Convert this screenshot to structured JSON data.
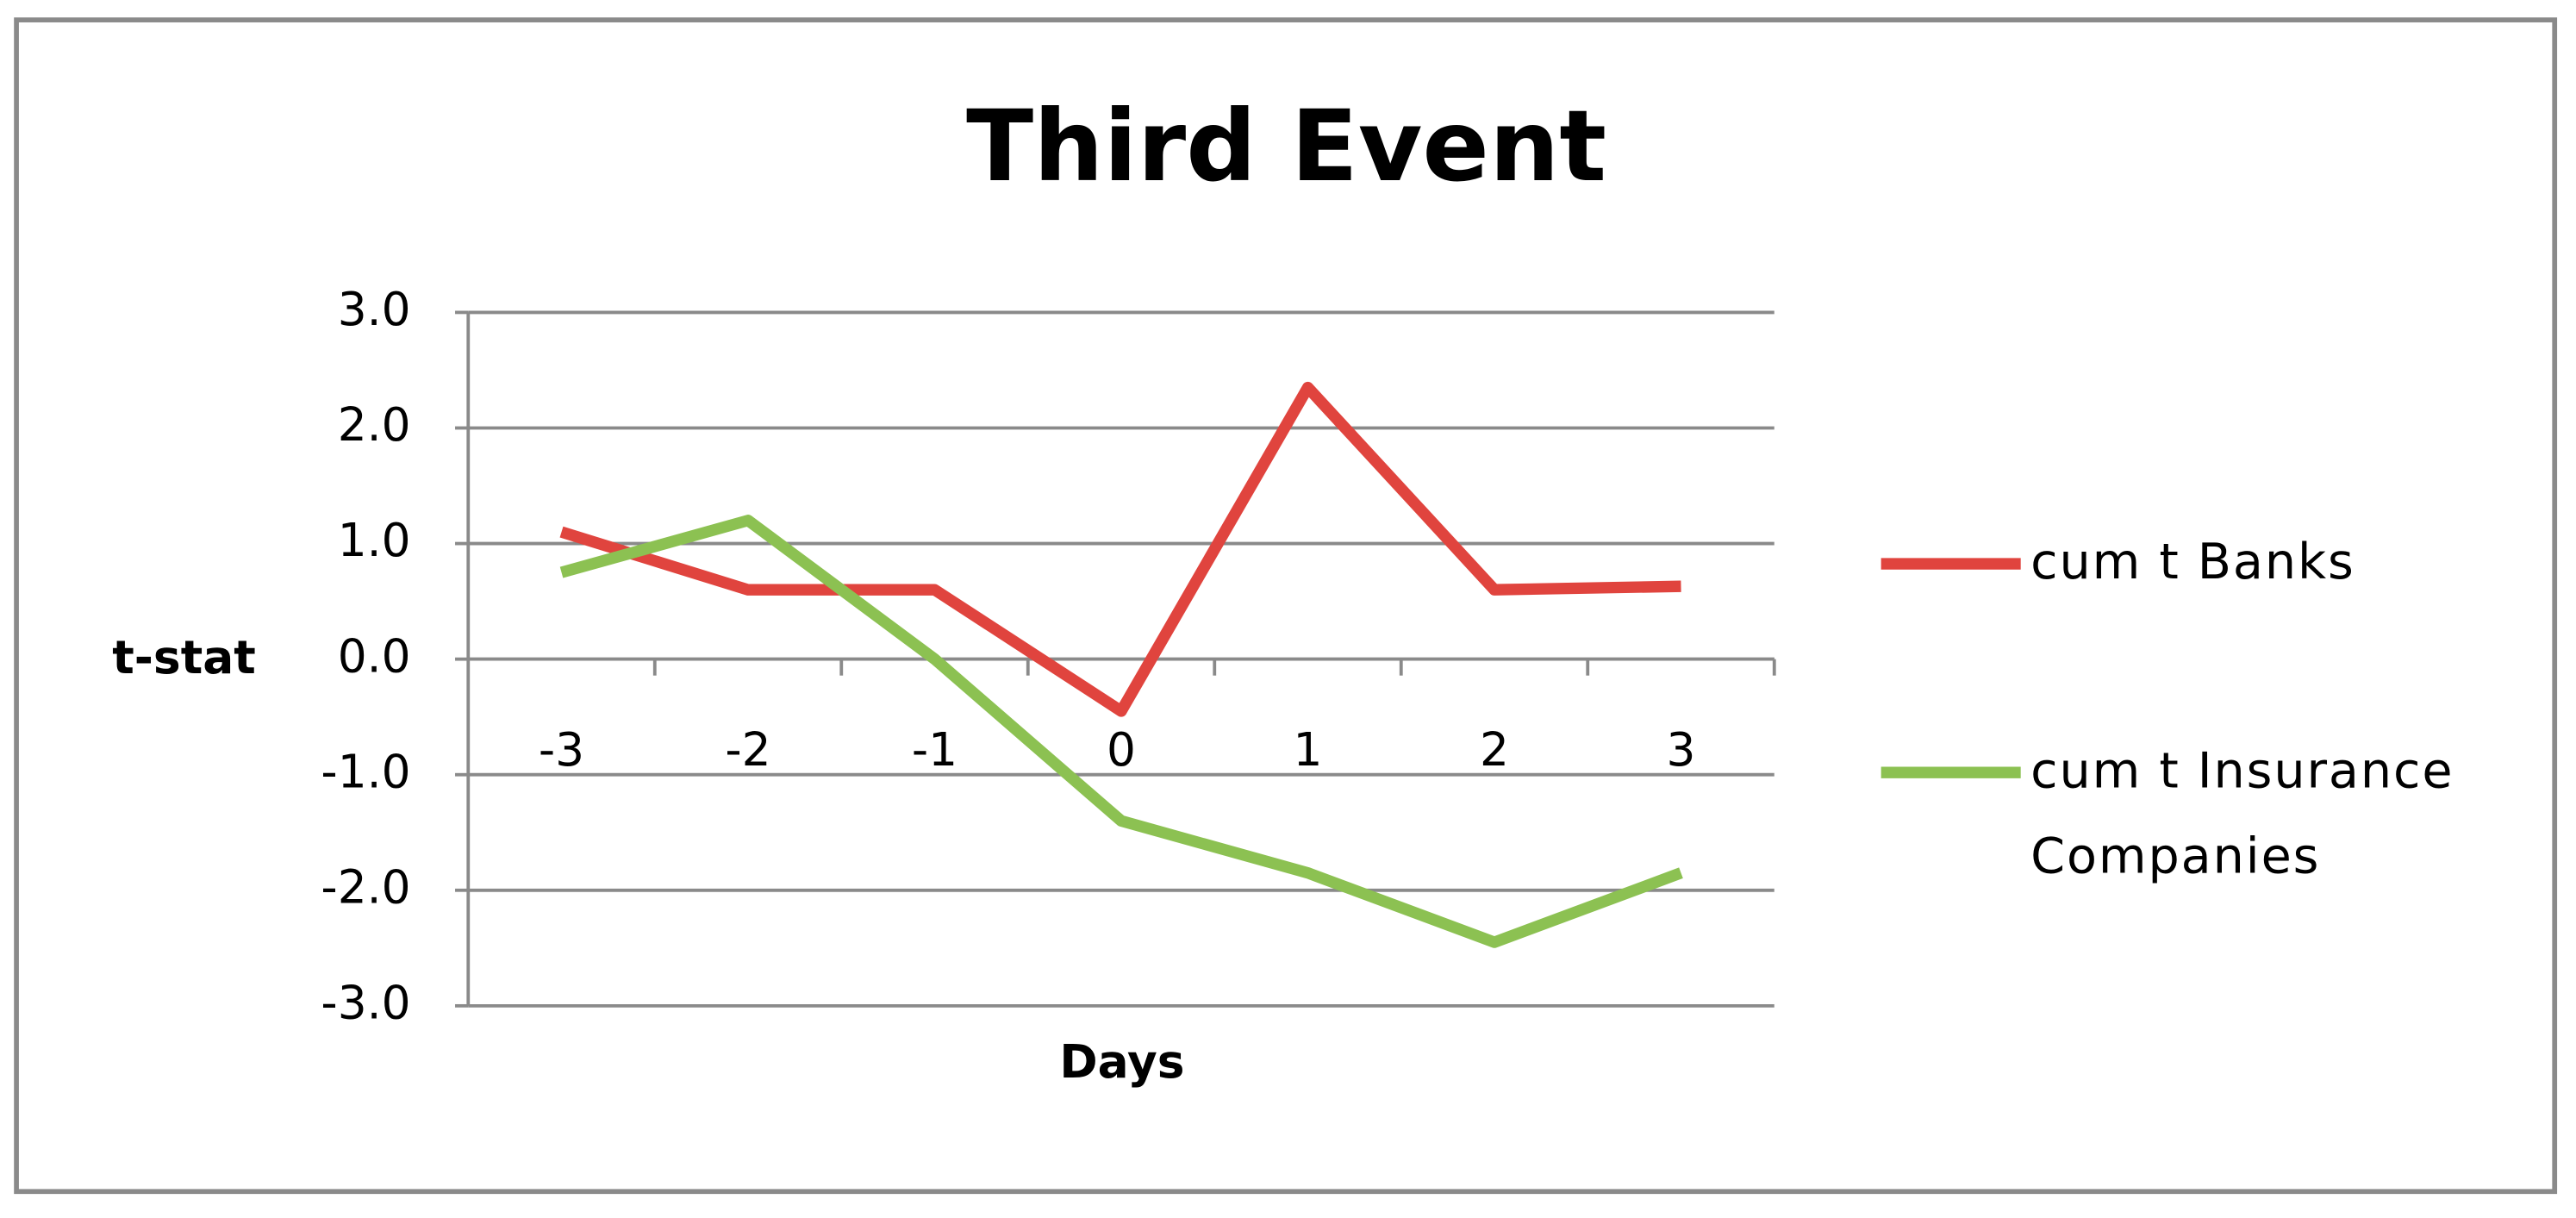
{
  "chart_data": {
    "type": "line",
    "title": "Third Event",
    "x_label": "Days",
    "y_label": "t-stat",
    "categories": [
      "-3",
      "-2",
      "-1",
      "0",
      "1",
      "2",
      "3"
    ],
    "series": [
      {
        "name": "cum t Banks",
        "color": "#e0443e",
        "values": [
          1.1,
          0.6,
          0.6,
          -0.45,
          2.35,
          0.6,
          0.63
        ]
      },
      {
        "name": "cum t Insurance Companies",
        "color": "#8cc152",
        "values": [
          0.75,
          1.2,
          0.0,
          -1.4,
          -1.85,
          -2.45,
          -1.85
        ]
      }
    ],
    "ylim": [
      -3,
      3
    ],
    "yticks": [
      {
        "value": -3,
        "label": "-3.0"
      },
      {
        "value": -2,
        "label": "-2.0"
      },
      {
        "value": -1,
        "label": "-1.0"
      },
      {
        "value": 0,
        "label": "0.0"
      },
      {
        "value": 1,
        "label": "1.0"
      },
      {
        "value": 2,
        "label": "2.0"
      },
      {
        "value": 3,
        "label": "3.0"
      }
    ],
    "grid": true,
    "legend": "right"
  }
}
